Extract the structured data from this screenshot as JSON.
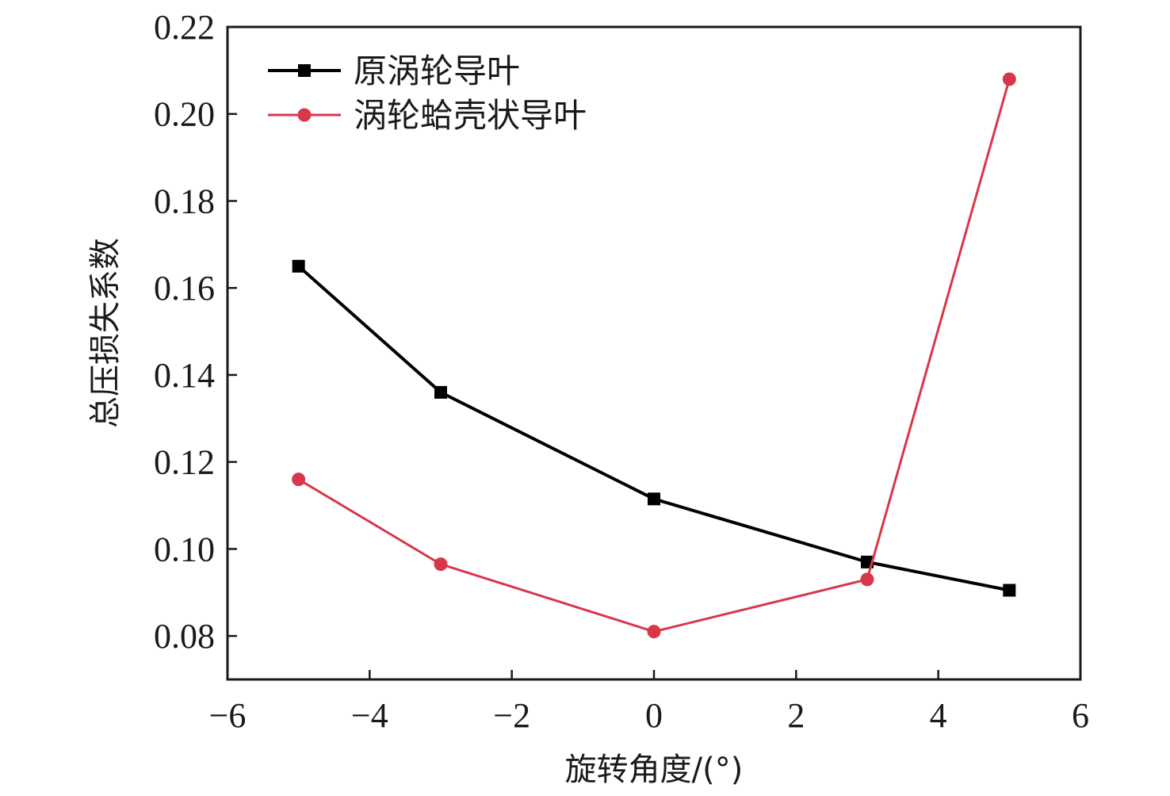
{
  "chart_data": {
    "type": "line",
    "title": "",
    "xlabel": "旋转角度/(°)",
    "ylabel": "总压损失系数",
    "xlim": [
      -6,
      6
    ],
    "ylim": [
      0.07,
      0.22
    ],
    "xticks": [
      -6,
      -4,
      -2,
      0,
      2,
      4,
      6
    ],
    "xtick_labels": [
      "−6",
      "−4",
      "−2",
      "0",
      "2",
      "4",
      "6"
    ],
    "yticks": [
      0.08,
      0.1,
      0.12,
      0.14,
      0.16,
      0.18,
      0.2,
      0.22
    ],
    "ytick_labels": [
      "0.08",
      "0.10",
      "0.12",
      "0.14",
      "0.16",
      "0.18",
      "0.20",
      "0.22"
    ],
    "grid": false,
    "legend_position": "top-left",
    "series": [
      {
        "name": "原涡轮导叶",
        "color": "#000000",
        "marker": "square",
        "x": [
          -5,
          -3,
          0,
          3,
          5
        ],
        "y": [
          0.165,
          0.136,
          0.1115,
          0.097,
          0.0905
        ]
      },
      {
        "name": "涡轮蛤壳状导叶",
        "color": "#d8374a",
        "marker": "circle",
        "x": [
          -5,
          -3,
          0,
          3,
          5
        ],
        "y": [
          0.116,
          0.0965,
          0.081,
          0.093,
          0.208
        ]
      }
    ]
  }
}
